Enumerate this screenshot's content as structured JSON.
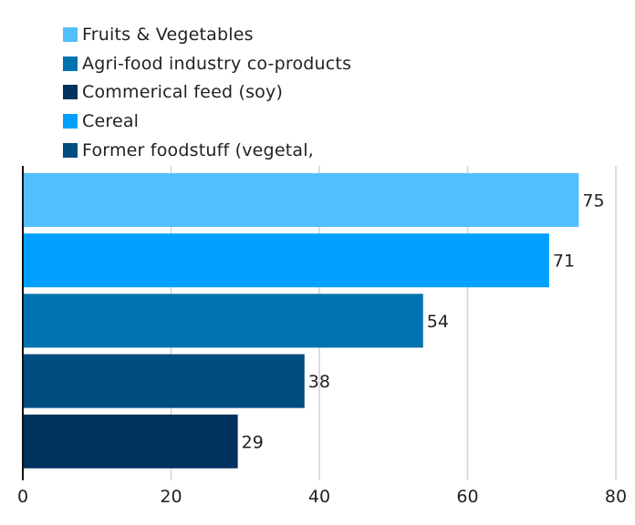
{
  "chart_data": {
    "type": "bar",
    "orientation": "horizontal",
    "title": "",
    "xlabel": "",
    "ylabel": "",
    "xlim": [
      0,
      80
    ],
    "xticks": [
      0,
      20,
      40,
      60,
      80
    ],
    "grid": true,
    "legend_position": "top-left",
    "legend": [
      {
        "label": "Fruits & Vegetables",
        "color": "#52BFFC"
      },
      {
        "label": "Agri-food industry co-products",
        "color": "#0072B0"
      },
      {
        "label": "Commerical feed (soy)",
        "color": "#00325F"
      },
      {
        "label": "Cereal",
        "color": "#00A0FF"
      },
      {
        "label": "Former foodstuff (vegetal,",
        "color": "#004D80"
      }
    ],
    "series": [
      {
        "name": "Fruits & Vegetables",
        "value": 75,
        "color": "#52BFFC"
      },
      {
        "name": "Cereal",
        "value": 71,
        "color": "#00A0FF"
      },
      {
        "name": "Agri-food industry co-products",
        "value": 54,
        "color": "#0072B0"
      },
      {
        "name": "Former foodstuff (vegetal,",
        "value": 38,
        "color": "#004D80"
      },
      {
        "name": "Commerical feed (soy)",
        "value": 29,
        "color": "#00325F"
      }
    ]
  }
}
